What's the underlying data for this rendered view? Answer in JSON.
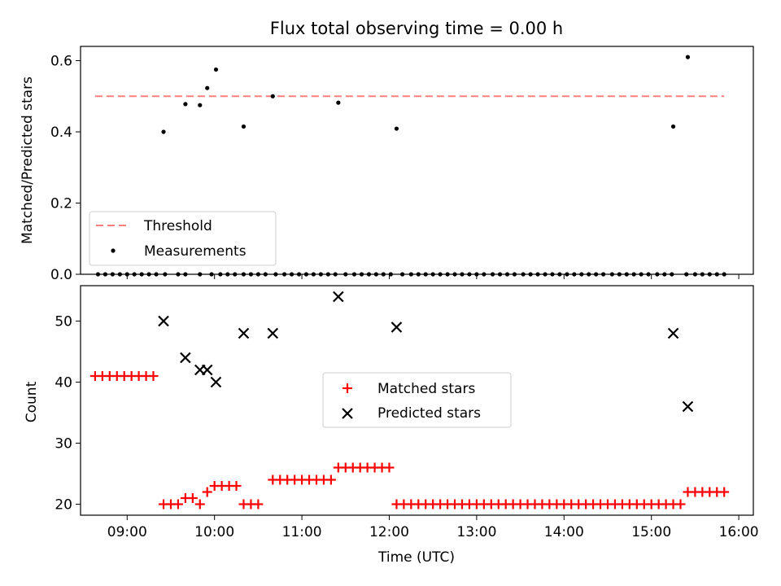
{
  "chart_data": [
    {
      "type": "scatter",
      "title": "Flux total observing time = 0.00 h",
      "xlabel": "",
      "ylabel": "Matched/Predicted stars",
      "xlim": [
        "08:28",
        "16:10"
      ],
      "ylim": [
        0,
        0.64
      ],
      "yticks": [
        0.0,
        0.2,
        0.4,
        0.6
      ],
      "ytick_labels": [
        "0.0",
        "0.2",
        "0.4",
        "0.6"
      ],
      "xticks": [
        "09:00",
        "10:00",
        "11:00",
        "12:00",
        "13:00",
        "14:00",
        "15:00",
        "16:00"
      ],
      "grid": false,
      "legend": {
        "position": "lower-left",
        "entries": [
          "Threshold",
          "Measurements"
        ]
      },
      "threshold": {
        "name": "Threshold",
        "value": 0.5,
        "x_range": [
          "08:38",
          "15:50"
        ],
        "color": "#ff7f7f"
      },
      "series": [
        {
          "name": "Measurements",
          "color": "#000000",
          "x": [
            "08:40",
            "08:45",
            "08:50",
            "08:55",
            "09:00",
            "09:05",
            "09:10",
            "09:15",
            "09:20",
            "09:26",
            "09:35",
            "09:40",
            "09:50",
            "09:58",
            "10:04",
            "10:09",
            "10:14",
            "10:20",
            "10:25",
            "10:30",
            "10:35",
            "10:42",
            "10:48",
            "10:53",
            "10:58",
            "11:03",
            "11:08",
            "11:13",
            "11:18",
            "11:23",
            "11:30",
            "11:36",
            "11:41",
            "11:46",
            "11:51",
            "11:56",
            "12:01",
            "12:09",
            "12:15",
            "12:20",
            "12:25",
            "12:30",
            "12:35",
            "12:40",
            "12:45",
            "12:50",
            "12:55",
            "13:00",
            "13:05",
            "13:11",
            "13:16",
            "13:21",
            "13:26",
            "13:32",
            "13:37",
            "13:42",
            "13:47",
            "13:52",
            "13:57",
            "14:02",
            "14:07",
            "14:12",
            "14:17",
            "14:22",
            "14:27",
            "14:33",
            "14:38",
            "14:43",
            "14:48",
            "14:53",
            "14:58",
            "15:04",
            "15:09",
            "15:14",
            "15:24",
            "15:30",
            "15:35",
            "15:40",
            "15:45",
            "15:50",
            "09:25",
            "09:40",
            "09:50",
            "09:55",
            "10:01",
            "10:20",
            "10:40",
            "11:25",
            "12:05",
            "15:15",
            "15:25"
          ],
          "y": [
            0,
            0,
            0,
            0,
            0,
            0,
            0,
            0,
            0,
            0,
            0,
            0,
            0,
            0,
            0,
            0,
            0,
            0,
            0,
            0,
            0,
            0,
            0,
            0,
            0,
            0,
            0,
            0,
            0,
            0,
            0,
            0,
            0,
            0,
            0,
            0,
            0,
            0,
            0,
            0,
            0,
            0,
            0,
            0,
            0,
            0,
            0,
            0,
            0,
            0,
            0,
            0,
            0,
            0,
            0,
            0,
            0,
            0,
            0,
            0,
            0,
            0,
            0,
            0,
            0,
            0,
            0,
            0,
            0,
            0,
            0,
            0,
            0,
            0,
            0,
            0,
            0,
            0,
            0,
            0,
            0.4,
            0.478,
            0.475,
            0.523,
            0.575,
            0.415,
            0.5,
            0.482,
            0.409,
            0.415,
            0.61
          ]
        }
      ]
    },
    {
      "type": "scatter",
      "title": "",
      "xlabel": "Time (UTC)",
      "ylabel": "Count",
      "xlim": [
        "08:28",
        "16:10"
      ],
      "ylim": [
        18.2,
        55.8
      ],
      "yticks": [
        20,
        30,
        40,
        50
      ],
      "ytick_labels": [
        "20",
        "30",
        "40",
        "50"
      ],
      "xticks": [
        "09:00",
        "10:00",
        "11:00",
        "12:00",
        "13:00",
        "14:00",
        "15:00",
        "16:00"
      ],
      "xtick_labels": [
        "09:00",
        "10:00",
        "11:00",
        "12:00",
        "13:00",
        "14:00",
        "15:00",
        "16:00"
      ],
      "grid": false,
      "legend": {
        "position": "center",
        "entries": [
          "Matched stars",
          "Predicted stars"
        ]
      },
      "series": [
        {
          "name": "Matched stars",
          "marker": "+",
          "color": "#ff0000",
          "x": [
            "08:38",
            "08:43",
            "08:48",
            "08:53",
            "08:58",
            "09:03",
            "09:08",
            "09:13",
            "09:18",
            "09:25",
            "09:30",
            "09:35",
            "09:40",
            "09:45",
            "09:50",
            "09:55",
            "10:00",
            "10:05",
            "10:10",
            "10:15",
            "10:20",
            "10:25",
            "10:30",
            "10:40",
            "10:45",
            "10:50",
            "10:55",
            "11:00",
            "11:05",
            "11:10",
            "11:15",
            "11:20",
            "11:25",
            "11:30",
            "11:35",
            "11:40",
            "11:45",
            "11:50",
            "11:55",
            "12:00",
            "12:05",
            "12:10",
            "12:15",
            "12:20",
            "12:25",
            "12:30",
            "12:35",
            "12:40",
            "12:45",
            "12:50",
            "12:55",
            "13:00",
            "13:05",
            "13:10",
            "13:15",
            "13:20",
            "13:25",
            "13:30",
            "13:35",
            "13:40",
            "13:45",
            "13:50",
            "13:55",
            "14:00",
            "14:05",
            "14:10",
            "14:15",
            "14:20",
            "14:25",
            "14:30",
            "14:35",
            "14:40",
            "14:45",
            "14:50",
            "14:55",
            "15:00",
            "15:05",
            "15:10",
            "15:15",
            "15:20",
            "15:25",
            "15:30",
            "15:35",
            "15:40",
            "15:45",
            "15:50"
          ],
          "y": [
            41,
            41,
            41,
            41,
            41,
            41,
            41,
            41,
            41,
            20,
            20,
            20,
            21,
            21,
            20,
            22,
            23,
            23,
            23,
            23,
            20,
            20,
            20,
            24,
            24,
            24,
            24,
            24,
            24,
            24,
            24,
            24,
            26,
            26,
            26,
            26,
            26,
            26,
            26,
            26,
            20,
            20,
            20,
            20,
            20,
            20,
            20,
            20,
            20,
            20,
            20,
            20,
            20,
            20,
            20,
            20,
            20,
            20,
            20,
            20,
            20,
            20,
            20,
            20,
            20,
            20,
            20,
            20,
            20,
            20,
            20,
            20,
            20,
            20,
            20,
            20,
            20,
            20,
            20,
            20,
            22,
            22,
            22,
            22,
            22,
            22
          ]
        },
        {
          "name": "Predicted stars",
          "marker": "x",
          "color": "#000000",
          "x": [
            "09:25",
            "09:40",
            "09:50",
            "09:55",
            "10:01",
            "10:20",
            "10:40",
            "11:25",
            "12:05",
            "15:15",
            "15:25"
          ],
          "y": [
            50,
            44,
            42,
            42,
            40,
            48,
            48,
            54,
            49,
            48,
            36
          ]
        }
      ]
    }
  ]
}
